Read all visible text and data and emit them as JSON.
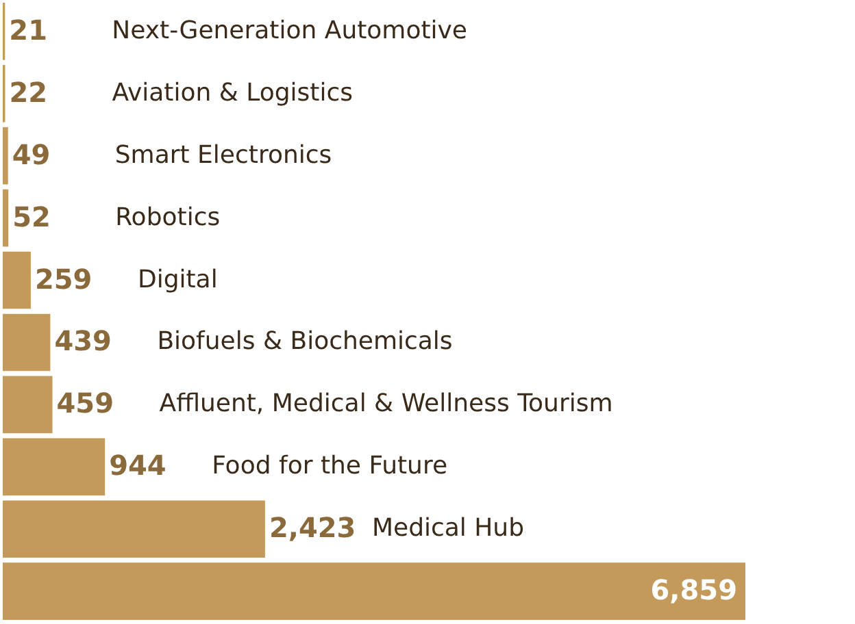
{
  "chart_data": {
    "type": "bar",
    "orientation": "horizontal",
    "categories": [
      "Next-Generation Automotive",
      "Aviation & Logistics",
      "Smart Electronics",
      "Robotics",
      "Digital",
      "Biofuels & Biochemicals",
      "Affluent, Medical & Wellness Tourism",
      "Food for the Future",
      "Medical Hub",
      null
    ],
    "values": [
      21,
      22,
      49,
      52,
      259,
      439,
      459,
      944,
      2423,
      6859
    ],
    "value_labels": [
      "21",
      "22",
      "49",
      "52",
      "259",
      "439",
      "459",
      "944",
      "2,423",
      "6,859"
    ],
    "color": "#c49a5a"
  }
}
